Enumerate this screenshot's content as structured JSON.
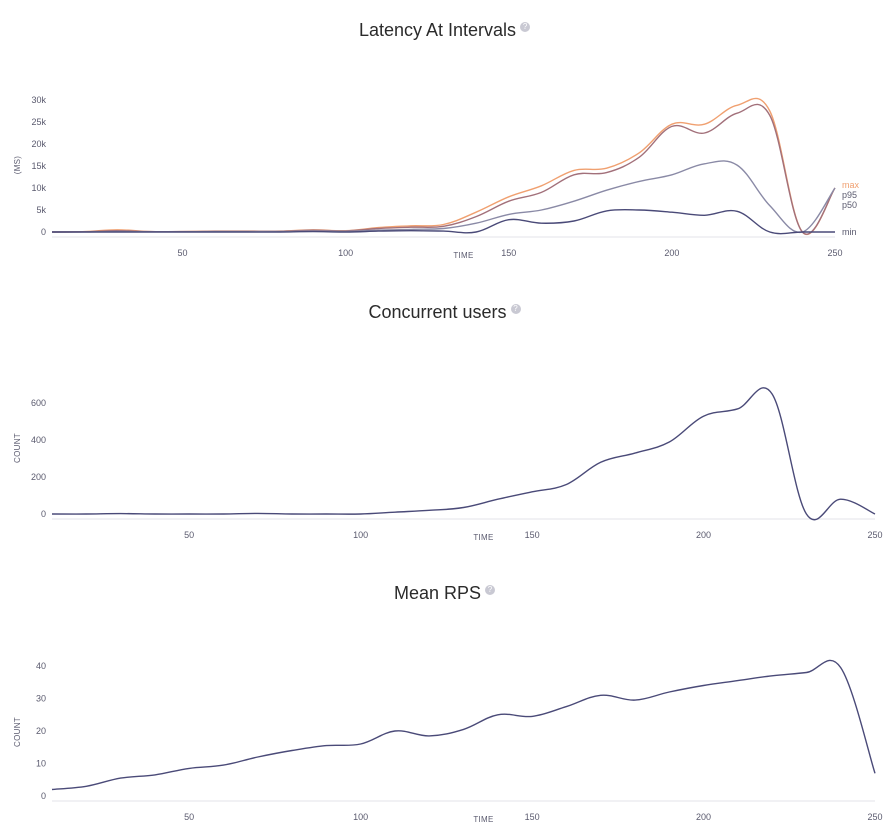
{
  "chart_data": [
    {
      "type": "line",
      "title": "Latency At Intervals",
      "xlabel": "TIME",
      "ylabel": "(MS)",
      "xlim": [
        10,
        250
      ],
      "ylim": [
        0,
        30000
      ],
      "xticks": [
        50,
        100,
        150,
        200,
        250
      ],
      "yticks": [
        0,
        5000,
        10000,
        15000,
        20000,
        25000,
        30000
      ],
      "ytick_labels": [
        "0",
        "5k",
        "10k",
        "15k",
        "20k",
        "25k",
        "30k"
      ],
      "series": [
        {
          "name": "max",
          "color": "#f0a070",
          "x": [
            10,
            20,
            30,
            40,
            50,
            60,
            70,
            80,
            90,
            100,
            110,
            120,
            130,
            140,
            150,
            160,
            170,
            180,
            190,
            200,
            210,
            220,
            230,
            240,
            250
          ],
          "y": [
            0,
            100,
            500,
            100,
            100,
            200,
            200,
            200,
            500,
            300,
            1000,
            1400,
            1700,
            4500,
            8000,
            10500,
            14000,
            14500,
            18000,
            24500,
            24500,
            28800,
            27500,
            0,
            10000
          ]
        },
        {
          "name": "p95",
          "color": "#a2707a",
          "x": [
            10,
            20,
            30,
            40,
            50,
            60,
            70,
            80,
            90,
            100,
            110,
            120,
            130,
            140,
            150,
            160,
            170,
            180,
            190,
            200,
            210,
            220,
            230,
            240,
            250
          ],
          "y": [
            0,
            50,
            300,
            80,
            80,
            150,
            150,
            150,
            400,
            250,
            800,
            1100,
            1300,
            3500,
            7000,
            9000,
            13000,
            13500,
            17000,
            24000,
            22500,
            27000,
            26500,
            0,
            10000
          ]
        },
        {
          "name": "p50",
          "color": "#8a8aa6",
          "x": [
            10,
            20,
            30,
            40,
            50,
            60,
            70,
            80,
            90,
            100,
            110,
            120,
            130,
            140,
            150,
            160,
            170,
            180,
            190,
            200,
            210,
            220,
            230,
            240,
            250
          ],
          "y": [
            0,
            30,
            100,
            50,
            50,
            100,
            100,
            100,
            200,
            150,
            400,
            600,
            800,
            2000,
            4000,
            5000,
            7000,
            9500,
            11500,
            13000,
            15500,
            15200,
            6000,
            0,
            10000
          ]
        },
        {
          "name": "min",
          "color": "#4a4a78",
          "x": [
            10,
            20,
            30,
            40,
            50,
            60,
            70,
            80,
            90,
            100,
            110,
            120,
            130,
            140,
            150,
            160,
            170,
            180,
            190,
            200,
            210,
            220,
            230,
            240,
            250
          ],
          "y": [
            0,
            0,
            0,
            0,
            0,
            0,
            0,
            0,
            100,
            0,
            200,
            300,
            200,
            0,
            2800,
            2000,
            2500,
            4800,
            5000,
            4500,
            3800,
            4700,
            0,
            0,
            0
          ]
        }
      ]
    },
    {
      "type": "line",
      "title": "Concurrent users",
      "xlabel": "TIME",
      "ylabel": "COUNT",
      "xlim": [
        10,
        250
      ],
      "ylim": [
        0,
        650
      ],
      "xticks": [
        50,
        100,
        150,
        200,
        250
      ],
      "yticks": [
        0,
        200,
        400,
        600
      ],
      "ytick_labels": [
        "0",
        "200",
        "400",
        "600"
      ],
      "series": [
        {
          "color": "#4a4a78",
          "x": [
            10,
            20,
            30,
            40,
            50,
            60,
            70,
            80,
            90,
            100,
            110,
            120,
            130,
            140,
            150,
            160,
            170,
            180,
            190,
            200,
            210,
            220,
            230,
            240,
            250
          ],
          "y": [
            0,
            0,
            2,
            0,
            0,
            0,
            3,
            0,
            0,
            0,
            10,
            20,
            35,
            80,
            120,
            160,
            280,
            330,
            390,
            530,
            570,
            650,
            0,
            80,
            0
          ]
        }
      ]
    },
    {
      "type": "line",
      "title": "Mean RPS",
      "xlabel": "TIME",
      "ylabel": "COUNT",
      "xlim": [
        10,
        250
      ],
      "ylim": [
        0,
        40
      ],
      "xticks": [
        50,
        100,
        150,
        200,
        250
      ],
      "yticks": [
        0,
        10,
        20,
        30,
        40
      ],
      "ytick_labels": [
        "0",
        "10",
        "20",
        "30",
        "40"
      ],
      "series": [
        {
          "color": "#4a4a78",
          "x": [
            10,
            20,
            30,
            40,
            50,
            60,
            70,
            80,
            90,
            100,
            110,
            120,
            130,
            140,
            150,
            160,
            170,
            180,
            190,
            200,
            210,
            220,
            230,
            240,
            250
          ],
          "y": [
            2,
            3,
            5.5,
            6.5,
            8.5,
            9.5,
            12,
            14,
            15.5,
            16,
            20,
            18.5,
            20.5,
            25,
            24.5,
            27.5,
            31,
            29.5,
            32,
            34,
            35.5,
            37,
            38,
            39.5,
            7
          ]
        }
      ]
    }
  ]
}
